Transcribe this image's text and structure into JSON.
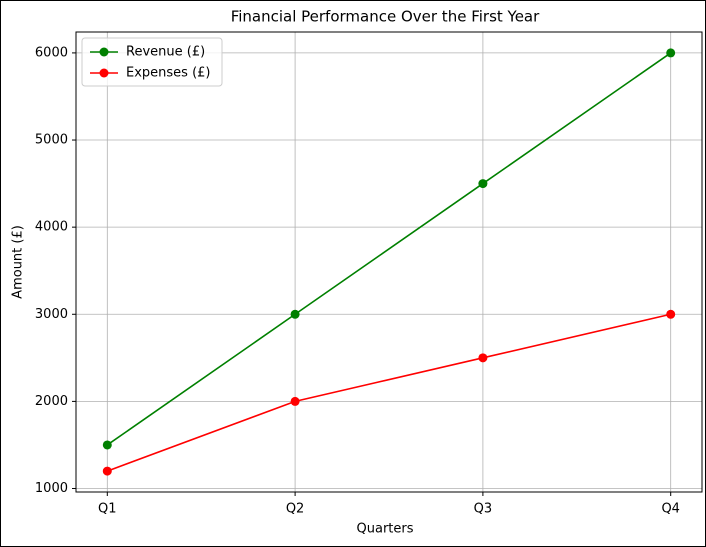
{
  "chart_data": {
    "type": "line",
    "title": "Financial Performance Over the First Year",
    "x_label": "Quarters",
    "y_label": "Amount (£)",
    "categories": [
      "Q1",
      "Q2",
      "Q3",
      "Q4"
    ],
    "series": [
      {
        "name": "Revenue (£)",
        "color": "green",
        "values": [
          1500,
          3000,
          4500,
          6000
        ]
      },
      {
        "name": "Expenses (£)",
        "color": "red",
        "values": [
          1200,
          2000,
          2500,
          3000
        ]
      }
    ],
    "ylim": [
      960,
      6240
    ],
    "yticks": [
      1000,
      2000,
      3000,
      4000,
      5000,
      6000
    ],
    "grid": true,
    "legend": "upper-left"
  }
}
